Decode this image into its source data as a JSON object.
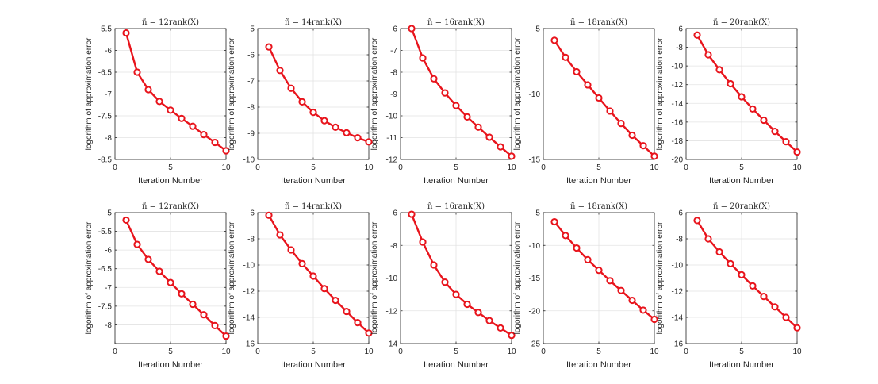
{
  "colors": {
    "line": "#e8141c",
    "axis": "#262626",
    "grid": "#e3e3e3",
    "text": "#262626",
    "background": "#ffffff"
  },
  "chart_data": [
    {
      "type": "line",
      "title": "ñ = 12rank(X)",
      "xlabel": "Iteration Number",
      "ylabel": "logorithm of approximation error",
      "xlim": [
        0,
        10
      ],
      "ylim": [
        -8.5,
        -5.5
      ],
      "xticks": [
        0,
        5,
        10
      ],
      "yticks": [
        -8.5,
        -8,
        -7.5,
        -7,
        -6.5,
        -6,
        -5.5
      ],
      "xticklabels": [
        "0",
        "5",
        "10"
      ],
      "yticklabels": [
        "-8.5",
        "-8",
        "-7.5",
        "-7",
        "-6.5",
        "-6",
        "-5.5"
      ],
      "grid": true,
      "x": [
        1,
        2,
        3,
        4,
        5,
        6,
        7,
        8,
        9,
        10
      ],
      "y": [
        -5.6,
        -6.5,
        -6.9,
        -7.17,
        -7.37,
        -7.56,
        -7.74,
        -7.93,
        -8.11,
        -8.3
      ]
    },
    {
      "type": "line",
      "title": "ñ = 14rank(X)",
      "xlabel": "Iteration Number",
      "ylabel": "logorithm of approximation error",
      "xlim": [
        0,
        10
      ],
      "ylim": [
        -10,
        -5
      ],
      "xticks": [
        0,
        5,
        10
      ],
      "yticks": [
        -10,
        -9,
        -8,
        -7,
        -6,
        -5
      ],
      "xticklabels": [
        "0",
        "5",
        "10"
      ],
      "yticklabels": [
        "-10",
        "-9",
        "-8",
        "-7",
        "-6",
        "-5"
      ],
      "grid": true,
      "x": [
        1,
        2,
        3,
        4,
        5,
        6,
        7,
        8,
        9,
        10
      ],
      "y": [
        -5.7,
        -6.6,
        -7.28,
        -7.8,
        -8.2,
        -8.52,
        -8.77,
        -8.98,
        -9.17,
        -9.33
      ]
    },
    {
      "type": "line",
      "title": "ñ = 16rank(X)",
      "xlabel": "Iteration Number",
      "ylabel": "logorithm of approximation error",
      "xlim": [
        0,
        10
      ],
      "ylim": [
        -12,
        -6
      ],
      "xticks": [
        0,
        5,
        10
      ],
      "yticks": [
        -12,
        -11,
        -10,
        -9,
        -8,
        -7,
        -6
      ],
      "xticklabels": [
        "0",
        "5",
        "10"
      ],
      "yticklabels": [
        "-12",
        "-11",
        "-10",
        "-9",
        "-8",
        "-7",
        "-6"
      ],
      "grid": true,
      "x": [
        1,
        2,
        3,
        4,
        5,
        6,
        7,
        8,
        9,
        10
      ],
      "y": [
        -6.0,
        -7.35,
        -8.3,
        -8.95,
        -9.53,
        -10.05,
        -10.52,
        -10.98,
        -11.42,
        -11.85
      ]
    },
    {
      "type": "line",
      "title": "ñ = 18rank(X)",
      "xlabel": "Iteration Number",
      "ylabel": "logorithm of approximation error",
      "xlim": [
        0,
        10
      ],
      "ylim": [
        -15,
        -5
      ],
      "xticks": [
        0,
        5,
        10
      ],
      "yticks": [
        -15,
        -10,
        -5
      ],
      "xticklabels": [
        "0",
        "5",
        "10"
      ],
      "yticklabels": [
        "-15",
        "-10",
        "-5"
      ],
      "grid": true,
      "x": [
        1,
        2,
        3,
        4,
        5,
        6,
        7,
        8,
        9,
        10
      ],
      "y": [
        -5.9,
        -7.2,
        -8.3,
        -9.3,
        -10.3,
        -11.3,
        -12.25,
        -13.15,
        -13.95,
        -14.75
      ]
    },
    {
      "type": "line",
      "title": "ñ = 20rank(X)",
      "xlabel": "Iteration Number",
      "ylabel": "logorithm of approximation error",
      "xlim": [
        0,
        10
      ],
      "ylim": [
        -20,
        -6
      ],
      "xticks": [
        0,
        5,
        10
      ],
      "yticks": [
        -20,
        -18,
        -16,
        -14,
        -12,
        -10,
        -8,
        -6
      ],
      "xticklabels": [
        "0",
        "5",
        "10"
      ],
      "yticklabels": [
        "-20",
        "-18",
        "-16",
        "-14",
        "-12",
        "-10",
        "-8",
        "-6"
      ],
      "grid": true,
      "x": [
        1,
        2,
        3,
        4,
        5,
        6,
        7,
        8,
        9,
        10
      ],
      "y": [
        -6.7,
        -8.8,
        -10.4,
        -11.9,
        -13.3,
        -14.6,
        -15.8,
        -17.0,
        -18.1,
        -19.2
      ]
    },
    {
      "type": "line",
      "title": "ñ = 12rank(X)",
      "xlabel": "Iteration Number",
      "ylabel": "logorithm of approximation error",
      "xlim": [
        0,
        10
      ],
      "ylim": [
        -8.5,
        -5
      ],
      "xticks": [
        0,
        5,
        10
      ],
      "yticks": [
        -8.5,
        -8,
        -7.5,
        -7,
        -6.5,
        -6,
        -5.5,
        -5
      ],
      "xticklabels": [
        "0",
        "5",
        "10"
      ],
      "yticklabels": [
        "",
        "-8",
        "-7.5",
        "-7",
        "-6.5",
        "-6",
        "-5.5",
        "-5"
      ],
      "grid": true,
      "x": [
        1,
        2,
        3,
        4,
        5,
        6,
        7,
        8,
        9,
        10
      ],
      "y": [
        -5.2,
        -5.85,
        -6.25,
        -6.57,
        -6.87,
        -7.17,
        -7.45,
        -7.73,
        -8.02,
        -8.3
      ]
    },
    {
      "type": "line",
      "title": "ñ = 14rank(X)",
      "xlabel": "Iteration Number",
      "ylabel": "logorithm of approximation error",
      "xlim": [
        0,
        10
      ],
      "ylim": [
        -16,
        -6
      ],
      "xticks": [
        0,
        5,
        10
      ],
      "yticks": [
        -16,
        -14,
        -12,
        -10,
        -8,
        -6
      ],
      "xticklabels": [
        "0",
        "5",
        "10"
      ],
      "yticklabels": [
        "-16",
        "-14",
        "-12",
        "-10",
        "-8",
        "-6"
      ],
      "grid": true,
      "x": [
        1,
        2,
        3,
        4,
        5,
        6,
        7,
        8,
        9,
        10
      ],
      "y": [
        -6.2,
        -7.7,
        -8.85,
        -9.9,
        -10.85,
        -11.8,
        -12.7,
        -13.55,
        -14.4,
        -15.2
      ]
    },
    {
      "type": "line",
      "title": "ñ = 16rank(X)",
      "xlabel": "Iteration Number",
      "ylabel": "logorithm of approximation error",
      "xlim": [
        0,
        10
      ],
      "ylim": [
        -14,
        -6
      ],
      "xticks": [
        0,
        5,
        10
      ],
      "yticks": [
        -14,
        -12,
        -10,
        -8,
        -6
      ],
      "xticklabels": [
        "0",
        "5",
        "10"
      ],
      "yticklabels": [
        "-14",
        "-12",
        "-10",
        "-8",
        "-6"
      ],
      "grid": true,
      "x": [
        1,
        2,
        3,
        4,
        5,
        6,
        7,
        8,
        9,
        10
      ],
      "y": [
        -6.1,
        -7.8,
        -9.2,
        -10.25,
        -11.0,
        -11.6,
        -12.1,
        -12.6,
        -13.05,
        -13.5
      ]
    },
    {
      "type": "line",
      "title": "ñ = 18rank(X)",
      "xlabel": "Iteration Number",
      "ylabel": "logorithm of approximation error",
      "xlim": [
        0,
        10
      ],
      "ylim": [
        -25,
        -5
      ],
      "xticks": [
        0,
        5,
        10
      ],
      "yticks": [
        -25,
        -20,
        -15,
        -10,
        -5
      ],
      "xticklabels": [
        "0",
        "5",
        "10"
      ],
      "yticklabels": [
        "-25",
        "-20",
        "-15",
        "-10",
        "-5"
      ],
      "grid": true,
      "x": [
        1,
        2,
        3,
        4,
        5,
        6,
        7,
        8,
        9,
        10
      ],
      "y": [
        -6.4,
        -8.5,
        -10.4,
        -12.2,
        -13.8,
        -15.4,
        -16.9,
        -18.4,
        -19.9,
        -21.3
      ]
    },
    {
      "type": "line",
      "title": "ñ = 20rank(X)",
      "xlabel": "Iteration Number",
      "ylabel": "logorithm of approximation error",
      "xlim": [
        0,
        10
      ],
      "ylim": [
        -16,
        -6
      ],
      "xticks": [
        0,
        5,
        10
      ],
      "yticks": [
        -16,
        -14,
        -12,
        -10,
        -8,
        -6
      ],
      "xticklabels": [
        "0",
        "5",
        "10"
      ],
      "yticklabels": [
        "-16",
        "-14",
        "-12",
        "-10",
        "-8",
        "-6"
      ],
      "grid": true,
      "x": [
        1,
        2,
        3,
        4,
        5,
        6,
        7,
        8,
        9,
        10
      ],
      "y": [
        -6.6,
        -8.0,
        -9.0,
        -9.9,
        -10.75,
        -11.6,
        -12.4,
        -13.2,
        -14.0,
        -14.8
      ]
    }
  ]
}
